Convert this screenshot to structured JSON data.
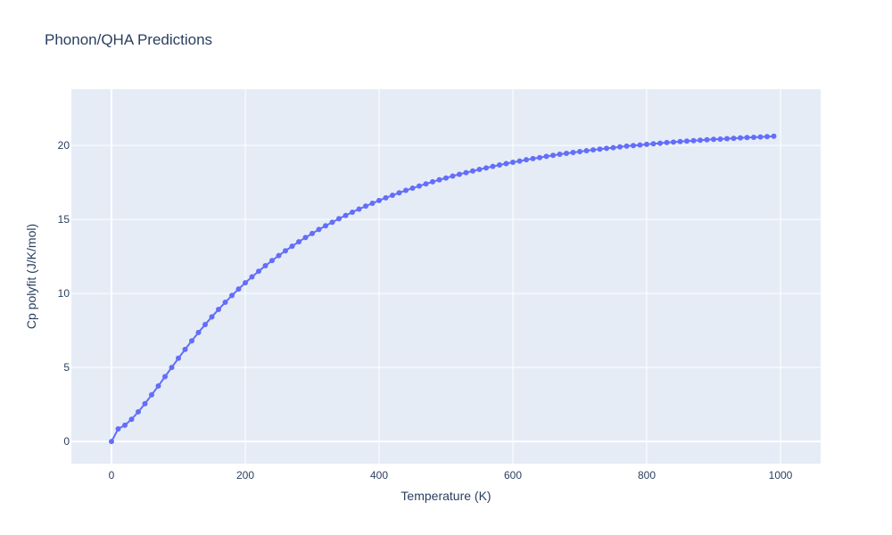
{
  "chart_data": {
    "type": "line",
    "title": "Phonon/QHA Predictions",
    "xlabel": "Temperature (K)",
    "ylabel": "Cp polyfit (J/K/mol)",
    "xlim": [
      -60,
      1060
    ],
    "ylim": [
      -1.5,
      23.8
    ],
    "x_ticks": [
      0,
      200,
      400,
      600,
      800,
      1000
    ],
    "y_ticks": [
      0,
      5,
      10,
      15,
      20
    ],
    "grid": true,
    "legend": "none",
    "colors": {
      "plot_bg": "#e5ecf6",
      "grid": "#ffffff",
      "line": "#636efa"
    },
    "x": [
      0,
      10,
      20,
      30,
      40,
      50,
      60,
      70,
      80,
      90,
      100,
      110,
      120,
      130,
      140,
      150,
      160,
      170,
      180,
      190,
      200,
      210,
      220,
      230,
      240,
      250,
      260,
      270,
      280,
      290,
      300,
      310,
      320,
      330,
      340,
      350,
      360,
      370,
      380,
      390,
      400,
      410,
      420,
      430,
      440,
      450,
      460,
      470,
      480,
      490,
      500,
      510,
      520,
      530,
      540,
      550,
      560,
      570,
      580,
      590,
      600,
      610,
      620,
      630,
      640,
      650,
      660,
      670,
      680,
      690,
      700,
      710,
      720,
      730,
      740,
      750,
      760,
      770,
      780,
      790,
      800,
      810,
      820,
      830,
      840,
      850,
      860,
      870,
      880,
      890,
      900,
      910,
      920,
      930,
      940,
      950,
      960,
      970,
      980,
      990
    ],
    "y": [
      0.0,
      0.85,
      1.1,
      1.5,
      2.0,
      2.55,
      3.15,
      3.75,
      4.38,
      5.0,
      5.62,
      6.22,
      6.8,
      7.36,
      7.9,
      8.42,
      8.92,
      9.4,
      9.86,
      10.3,
      10.72,
      11.12,
      11.5,
      11.87,
      12.22,
      12.56,
      12.88,
      13.19,
      13.49,
      13.78,
      14.05,
      14.32,
      14.57,
      14.81,
      15.05,
      15.27,
      15.49,
      15.7,
      15.9,
      16.09,
      16.28,
      16.46,
      16.63,
      16.8,
      16.96,
      17.11,
      17.26,
      17.4,
      17.54,
      17.68,
      17.8,
      17.93,
      18.05,
      18.16,
      18.27,
      18.38,
      18.48,
      18.58,
      18.68,
      18.77,
      18.86,
      18.94,
      19.03,
      19.11,
      19.18,
      19.26,
      19.33,
      19.4,
      19.46,
      19.52,
      19.58,
      19.64,
      19.7,
      19.75,
      19.8,
      19.85,
      19.9,
      19.95,
      19.99,
      20.03,
      20.07,
      20.11,
      20.15,
      20.19,
      20.22,
      20.26,
      20.29,
      20.32,
      20.35,
      20.38,
      20.41,
      20.43,
      20.46,
      20.48,
      20.51,
      20.53,
      20.55,
      20.57,
      20.59,
      20.62
    ]
  }
}
